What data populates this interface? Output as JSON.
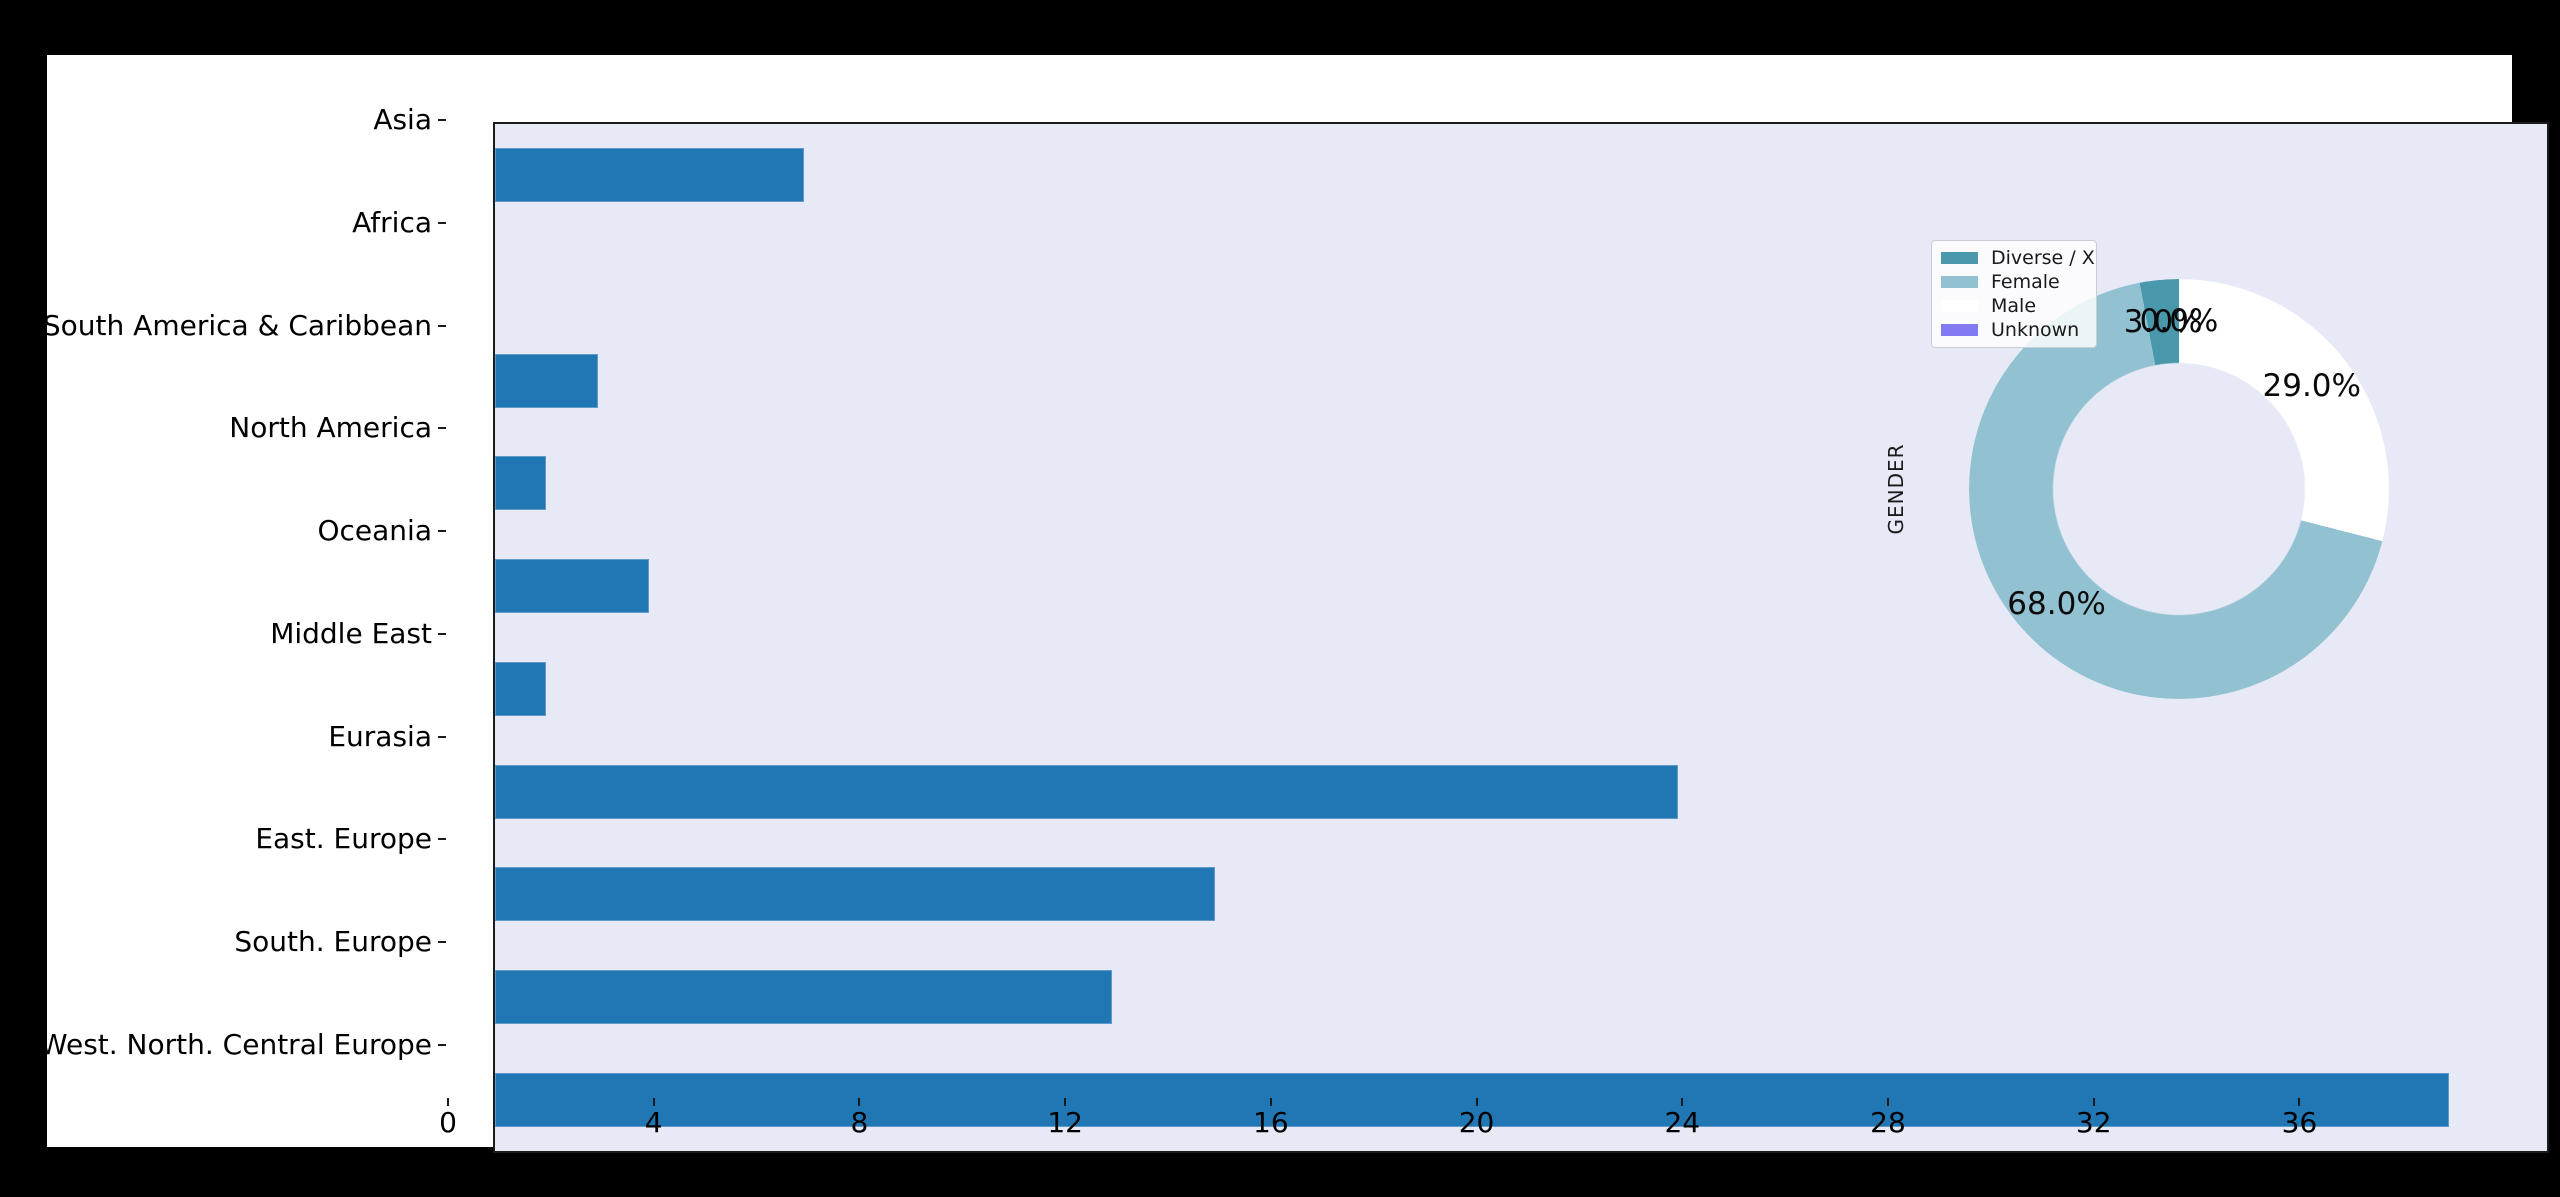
{
  "chart_data": [
    {
      "type": "bar",
      "orientation": "horizontal",
      "title": "",
      "xlabel": "",
      "ylabel": "",
      "categories": [
        "Asia",
        "Africa",
        "South America & Caribbean",
        "North America",
        "Oceania",
        "Middle East",
        "Eurasia",
        "East. Europe",
        "South. Europe",
        "West. North. Central Europe"
      ],
      "values": [
        6,
        0,
        2,
        1,
        3,
        1,
        23,
        14,
        12,
        38
      ],
      "xlim": [
        0,
        39.9
      ],
      "xticks": [
        0,
        4,
        8,
        12,
        16,
        20,
        24,
        28,
        32,
        36
      ],
      "xtick_labels": [
        "0",
        "4",
        "8",
        "12",
        "16",
        "20",
        "24",
        "28",
        "32",
        "36"
      ],
      "grid": false,
      "bar_color": "#2176b4",
      "plot_bg": "#e7eaf6"
    },
    {
      "type": "pie",
      "donut": true,
      "ylabel": "GENDER",
      "start_angle": 90,
      "counterclock": true,
      "pctdistance": 0.8,
      "hole_ratio": 0.6,
      "legend_position": "upper left",
      "segments": [
        {
          "label": "Diverse / X",
          "value": 3.0,
          "pct_label": "3.0%",
          "color": "#4a98ac"
        },
        {
          "label": "Female",
          "value": 68.0,
          "pct_label": "68.0%",
          "color": "#92c2d2"
        },
        {
          "label": "Male",
          "value": 29.0,
          "pct_label": "29.0%",
          "color": "#ffffff"
        },
        {
          "label": "Unknown",
          "value": 0.0,
          "pct_label": "0.0%",
          "color": "#827af0"
        }
      ]
    }
  ]
}
